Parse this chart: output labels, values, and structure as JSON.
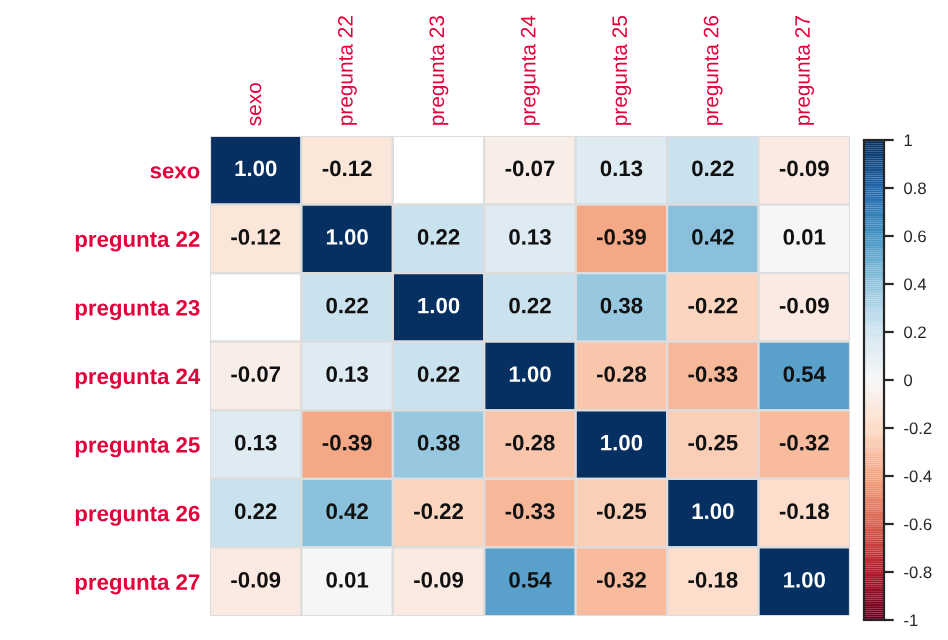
{
  "chart_data": {
    "type": "heatmap",
    "categories": [
      "sexo",
      "pregunta 22",
      "pregunta 23",
      "pregunta 24",
      "pregunta 25",
      "pregunta 26",
      "pregunta 27"
    ],
    "y_categories": [
      "sexo",
      "pregunta 22",
      "pregunta 23",
      "pregunta 24",
      "pregunta 25",
      "pregunta 26",
      "pregunta 27"
    ],
    "cells": [
      [
        1.0,
        -0.12,
        null,
        -0.07,
        0.13,
        0.22,
        -0.09
      ],
      [
        -0.12,
        1.0,
        0.22,
        0.13,
        -0.39,
        0.42,
        0.01
      ],
      [
        null,
        0.22,
        1.0,
        0.22,
        0.38,
        -0.22,
        -0.09
      ],
      [
        -0.07,
        0.13,
        0.22,
        1.0,
        -0.28,
        -0.33,
        0.54
      ],
      [
        0.13,
        -0.39,
        0.38,
        -0.28,
        1.0,
        -0.25,
        -0.32
      ],
      [
        0.22,
        0.42,
        -0.22,
        -0.33,
        -0.25,
        1.0,
        -0.18
      ],
      [
        -0.09,
        0.01,
        -0.09,
        0.54,
        -0.32,
        -0.18,
        1.0
      ]
    ],
    "cell_labels": [
      [
        "1.00",
        "-0.12",
        null,
        "-0.07",
        "0.13",
        "0.22",
        "-0.09"
      ],
      [
        "-0.12",
        "1.00",
        "0.22",
        "0.13",
        "-0.39",
        "0.42",
        "0.01"
      ],
      [
        null,
        "0.22",
        "1.00",
        "0.22",
        "0.38",
        "-0.22",
        "-0.09"
      ],
      [
        "-0.07",
        "0.13",
        "0.22",
        "1.00",
        "-0.28",
        "-0.33",
        "0.54"
      ],
      [
        "0.13",
        "-0.39",
        "0.38",
        "-0.28",
        "1.00",
        "-0.25",
        "-0.32"
      ],
      [
        "0.22",
        "0.42",
        "-0.22",
        "-0.33",
        "-0.25",
        "1.00",
        "-0.18"
      ],
      [
        "-0.09",
        "0.01",
        "-0.09",
        "0.54",
        "-0.32",
        "-0.18",
        "1.00"
      ]
    ],
    "clim": [
      -1,
      1
    ],
    "cticks": [
      -1,
      -0.8,
      -0.6,
      -0.4,
      -0.2,
      0,
      0.2,
      0.4,
      0.6,
      0.8,
      1
    ]
  }
}
